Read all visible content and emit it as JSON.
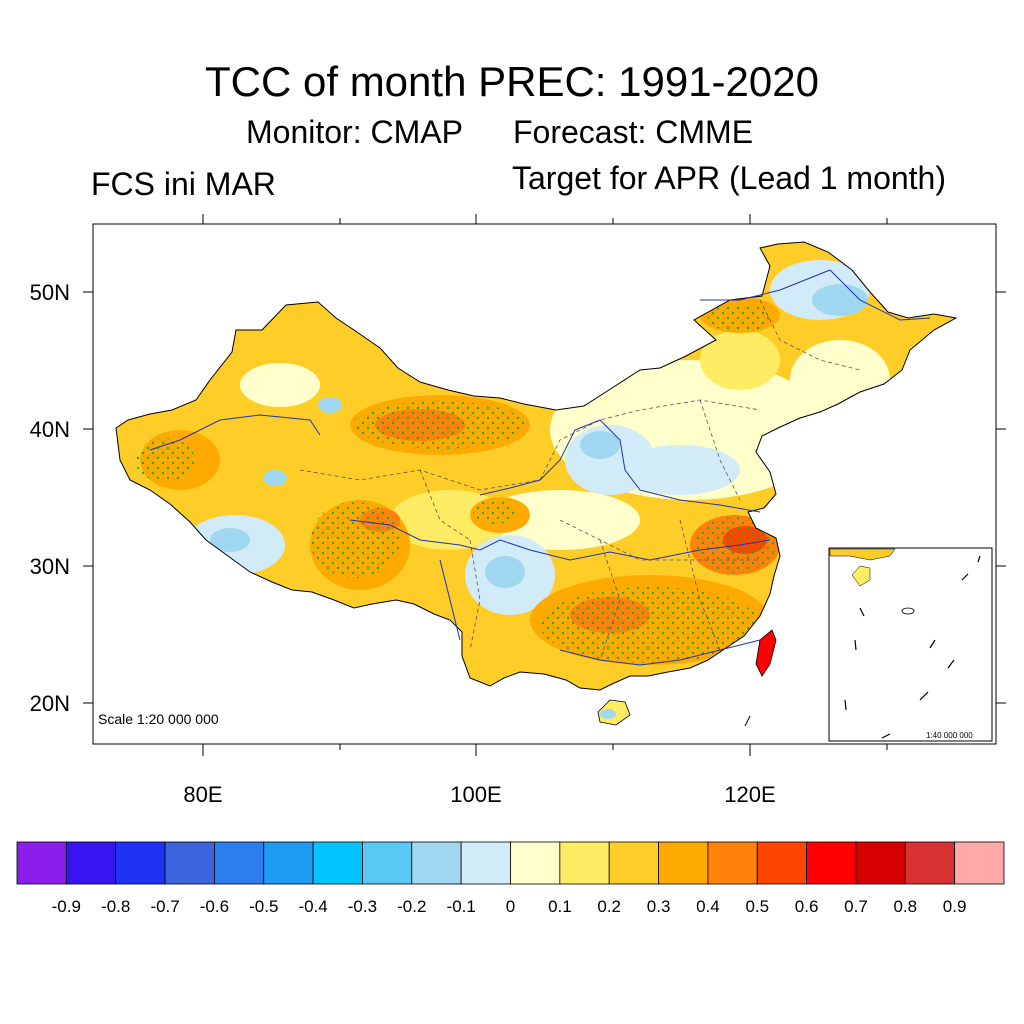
{
  "title": "TCC of month PREC: 1991-2020",
  "monitor": "Monitor: CMAP",
  "forecast": "Forecast: CMME",
  "init": "FCS ini MAR",
  "target": "Target for APR (Lead 1 month)",
  "axes": {
    "lat_labels": [
      "50N",
      "40N",
      "30N",
      "20N"
    ],
    "lon_labels": [
      "80E",
      "100E",
      "120E"
    ]
  },
  "scale_main": "Scale 1:20 000 000",
  "scale_inset": "1:40 000 000",
  "colorbar": {
    "labels": [
      "-0.9",
      "-0.8",
      "-0.7",
      "-0.6",
      "-0.5",
      "-0.4",
      "-0.3",
      "-0.2",
      "-0.1",
      "0",
      "0.1",
      "0.2",
      "0.3",
      "0.4",
      "0.5",
      "0.6",
      "0.7",
      "0.8",
      "0.9"
    ],
    "colors": [
      "#8B1EEB",
      "#3A14F0",
      "#1E33F5",
      "#3C64DC",
      "#2D7DF0",
      "#1E9BF5",
      "#00C3FF",
      "#5AC8F5",
      "#A0D7F0",
      "#D2EBF8",
      "#FFFFCC",
      "#FFEB64",
      "#FFCD28",
      "#FFAA00",
      "#FF820A",
      "#FF4600",
      "#FF0000",
      "#D70000",
      "#D73232",
      "#FFAAAA"
    ]
  }
}
